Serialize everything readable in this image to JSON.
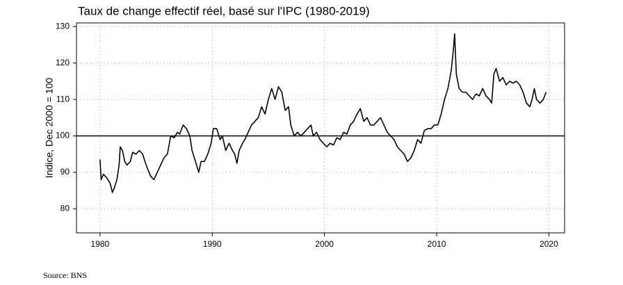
{
  "chart_data": {
    "type": "line",
    "title": "Taux de change effectif réel, basé sur l'IPC (1980-2019)",
    "y_label": "Indice, Dec 2000 = 100",
    "source": "Source: BNS",
    "color": "#000000",
    "grid": true,
    "hline": 100,
    "xlim": [
      1977.9,
      2021.4
    ],
    "ylim": [
      73.4,
      131
    ],
    "xticks": [
      1980,
      1990,
      2000,
      2010,
      2020
    ],
    "yticks": [
      80,
      90,
      100,
      110,
      120,
      130
    ],
    "x": [
      1980.0,
      1980.1,
      1980.3,
      1980.6,
      1980.9,
      1981.1,
      1981.3,
      1981.5,
      1981.7,
      1981.8,
      1982.0,
      1982.2,
      1982.4,
      1982.7,
      1982.9,
      1983.2,
      1983.5,
      1983.8,
      1984.0,
      1984.3,
      1984.5,
      1984.8,
      1985.1,
      1985.4,
      1985.7,
      1986.0,
      1986.3,
      1986.6,
      1986.9,
      1987.1,
      1987.4,
      1987.7,
      1988.0,
      1988.2,
      1988.5,
      1988.8,
      1989.0,
      1989.3,
      1989.6,
      1989.9,
      1990.1,
      1990.4,
      1990.7,
      1990.9,
      1991.2,
      1991.5,
      1991.8,
      1992.0,
      1992.2,
      1992.4,
      1992.7,
      1992.9,
      1993.2,
      1993.5,
      1993.8,
      1994.1,
      1994.4,
      1994.7,
      1995.0,
      1995.3,
      1995.6,
      1995.9,
      1996.2,
      1996.5,
      1996.8,
      1997.0,
      1997.3,
      1997.6,
      1997.9,
      1998.2,
      1998.5,
      1998.8,
      1999.0,
      1999.3,
      1999.6,
      1999.9,
      2000.2,
      2000.5,
      2000.8,
      2001.1,
      2001.4,
      2001.7,
      2002.0,
      2002.3,
      2002.6,
      2002.9,
      2003.2,
      2003.5,
      2003.8,
      2004.1,
      2004.4,
      2004.7,
      2005.0,
      2005.3,
      2005.6,
      2005.9,
      2006.2,
      2006.5,
      2006.8,
      2007.1,
      2007.4,
      2007.7,
      2008.0,
      2008.3,
      2008.6,
      2008.9,
      2009.2,
      2009.5,
      2009.8,
      2010.1,
      2010.4,
      2010.7,
      2011.0,
      2011.3,
      2011.5,
      2011.6,
      2011.75,
      2012.0,
      2012.3,
      2012.6,
      2012.9,
      2013.2,
      2013.5,
      2013.8,
      2014.1,
      2014.4,
      2014.7,
      2014.9,
      2015.1,
      2015.3,
      2015.6,
      2015.9,
      2016.2,
      2016.5,
      2016.8,
      2017.1,
      2017.4,
      2017.7,
      2018.0,
      2018.3,
      2018.5,
      2018.7,
      2018.9,
      2019.2,
      2019.5,
      2019.75
    ],
    "values": [
      93.5,
      88,
      89.5,
      88.5,
      87,
      84.5,
      86,
      88,
      92,
      97,
      96,
      93,
      92,
      93,
      95.5,
      95,
      96,
      95,
      93,
      90.5,
      89,
      88,
      90,
      92,
      94,
      95,
      100,
      99.5,
      101,
      100.5,
      103,
      102,
      100,
      96,
      93,
      90,
      93,
      93,
      95,
      98,
      102,
      102,
      99,
      100,
      96,
      98,
      96,
      95,
      92.5,
      96,
      98,
      99,
      101,
      103,
      104,
      105,
      108,
      106,
      110,
      113,
      110,
      113.5,
      112,
      107,
      108,
      103,
      100,
      101,
      100,
      101,
      102,
      103,
      100,
      101,
      99,
      98,
      97,
      98,
      97.5,
      99.5,
      99,
      101,
      100.5,
      103,
      104,
      106,
      107.5,
      104,
      105,
      103,
      103,
      104,
      105,
      103,
      101,
      100,
      99,
      97,
      96,
      95,
      93,
      94,
      96,
      99,
      98,
      101.5,
      102,
      102,
      103,
      103,
      106,
      110,
      113,
      118,
      124,
      128,
      117,
      113,
      112,
      112,
      111,
      110,
      111.5,
      111,
      113,
      111,
      110,
      109,
      117,
      118.5,
      115,
      116,
      114,
      115,
      114.5,
      115,
      114,
      112,
      109,
      108,
      110,
      113,
      110,
      109,
      110,
      112
    ]
  }
}
